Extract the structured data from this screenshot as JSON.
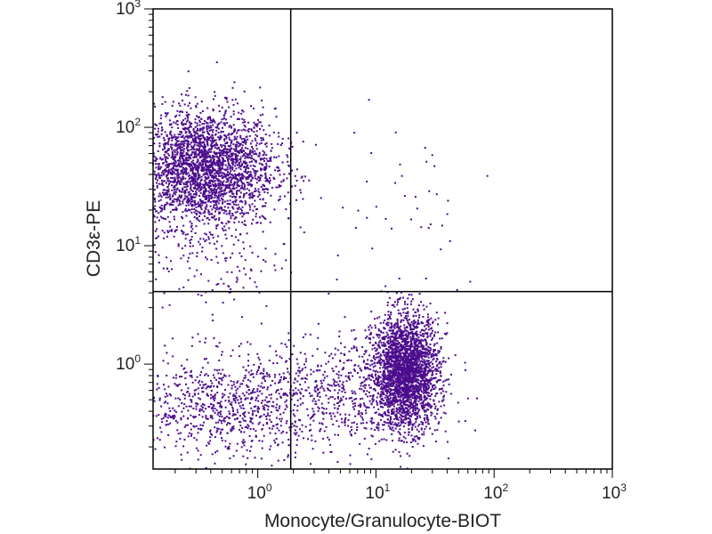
{
  "chart_data": {
    "type": "scatter",
    "title": "",
    "xlabel": "Monocyte/Granulocyte-BIOT",
    "ylabel": "CD3ε-PE",
    "x_scale": "log",
    "y_scale": "log",
    "xlim": [
      0.13,
      1000
    ],
    "ylim": [
      0.13,
      1000
    ],
    "x_ticks": [
      {
        "base": "10",
        "exp": "0",
        "value": 1
      },
      {
        "base": "10",
        "exp": "1",
        "value": 10
      },
      {
        "base": "10",
        "exp": "2",
        "value": 100
      },
      {
        "base": "10",
        "exp": "3",
        "value": 1000
      }
    ],
    "y_ticks": [
      {
        "base": "10",
        "exp": "0",
        "value": 1
      },
      {
        "base": "10",
        "exp": "1",
        "value": 10
      },
      {
        "base": "10",
        "exp": "2",
        "value": 100
      },
      {
        "base": "10",
        "exp": "3",
        "value": 1000
      }
    ],
    "quadrant_gates": {
      "x": 1.9,
      "y": 4.1
    },
    "point_color": "#4b0c8c",
    "populations": [
      {
        "cx": 0.35,
        "cy": 45,
        "sx": 0.3,
        "sy": 0.25,
        "n": 2800
      },
      {
        "cx": 18,
        "cy": 0.85,
        "sx": 0.14,
        "sy": 0.24,
        "n": 2600
      },
      {
        "cx": 0.55,
        "cy": 0.45,
        "sx": 0.45,
        "sy": 0.22,
        "n": 900
      },
      {
        "cx": 6,
        "cy": 0.6,
        "sx": 0.35,
        "sy": 0.25,
        "n": 500
      },
      {
        "cx": 0.45,
        "cy": 8,
        "sx": 0.28,
        "sy": 0.3,
        "n": 140
      },
      {
        "cx": 15,
        "cy": 30,
        "sx": 0.45,
        "sy": 0.45,
        "n": 40
      }
    ]
  }
}
